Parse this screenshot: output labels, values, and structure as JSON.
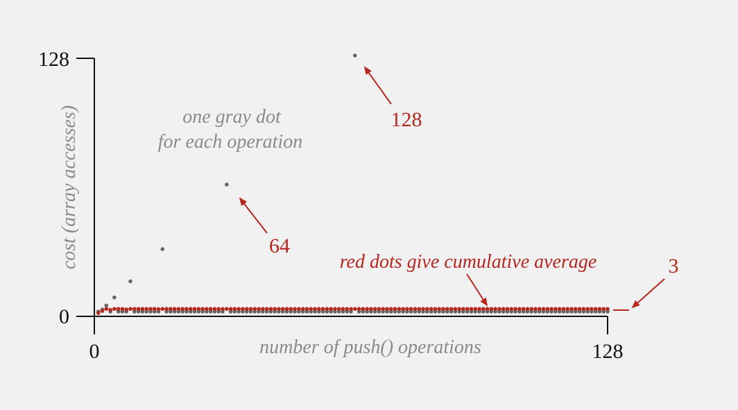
{
  "chart_data": {
    "type": "scatter",
    "xlabel": "number of push() operations",
    "ylabel": "cost (array accesses)",
    "x_ticks": [
      "0",
      "128"
    ],
    "y_ticks": [
      "0",
      "128"
    ],
    "xlim": [
      0,
      128
    ],
    "ylim": [
      0,
      128
    ],
    "colors": {
      "gray": "#666666",
      "red": "#b5261e"
    },
    "series_rule": {
      "gray": "cost of i-th push: 1 normally, 1 + 2k when resizing at i = k+1 for k a power of 2",
      "red": "cumulative average of gray costs"
    },
    "annotations": {
      "gray_note_line1": "one gray dot",
      "gray_note_line2": "for each operation",
      "red_note": "red dots give cumulative average",
      "label_128": "128",
      "label_64": "64",
      "label_3": "3"
    }
  }
}
